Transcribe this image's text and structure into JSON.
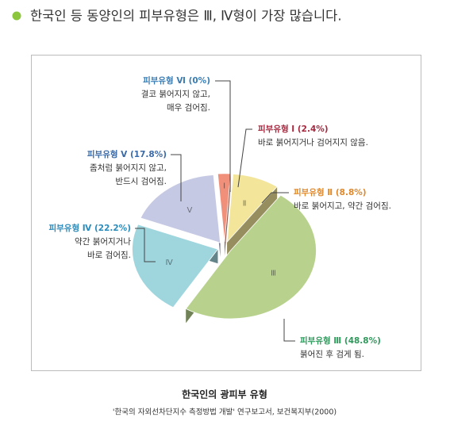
{
  "header": {
    "title": "한국인 등 동양인의 피부유형은 Ⅲ, Ⅳ형이 가장 많습니다."
  },
  "chart_data": {
    "type": "pie3d",
    "title": "한국인의 광피부 유형",
    "source": "'한국의 자외선차단지수 측정방법 개발' 연구보고서, 보건복지부(2000)",
    "categories": [
      "피부유형 Ⅰ",
      "피부유형 Ⅱ",
      "피부유형 Ⅲ",
      "피부유형 Ⅳ",
      "피부유형 Ⅴ",
      "피부유형 Ⅵ"
    ],
    "values": [
      2.4,
      8.8,
      48.8,
      22.2,
      17.8,
      0
    ],
    "value_labels": [
      "(2.4%)",
      "(8.8%)",
      "(48.8%)",
      "(22.2%)",
      "(17.8%)",
      "(0%)"
    ],
    "slice_labels": [
      "Ⅰ",
      "Ⅱ",
      "Ⅲ",
      "Ⅳ",
      "Ⅴ",
      "Ⅵ"
    ],
    "descriptions": [
      [
        "바로 붉어지거나 검어지지 않음."
      ],
      [
        "바로 붉어지고, 약간 검어짐."
      ],
      [
        "붉어진 후 검게 됨."
      ],
      [
        "약간 붉어지거나",
        "바로 검어짐."
      ],
      [
        "좀처럼 붉어지지 않고,",
        "반드시 검어짐."
      ],
      [
        "결코 붉어지지 않고,",
        "매우 검어짐."
      ]
    ],
    "colors": [
      "#f0907a",
      "#f3e59a",
      "#b8d28e",
      "#9fd6de",
      "#c6c9e3",
      "#d0d0d0"
    ],
    "label_colors": [
      "#a8283f",
      "#e0892c",
      "#2f9a5c",
      "#2b8cbc",
      "#3a6aa8",
      "#3a7db5"
    ]
  }
}
